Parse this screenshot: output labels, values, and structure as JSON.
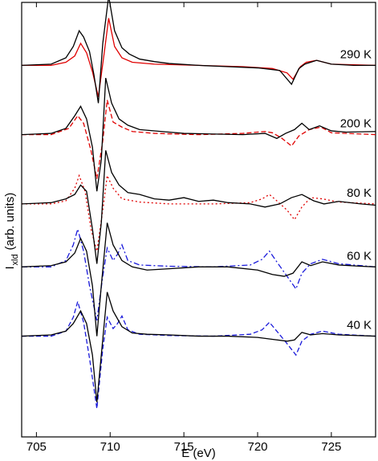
{
  "chart_data": {
    "type": "line",
    "xlabel": "E (eV)",
    "ylabel": {
      "main": "I",
      "subscript": "xld",
      "rest": " (arb. units)"
    },
    "xlim": [
      704,
      728
    ],
    "xticks": [
      705,
      710,
      715,
      720,
      725
    ],
    "xtick_labels": [
      "705",
      "710",
      "715",
      "720",
      "725"
    ],
    "yticks_visible": false,
    "grid": false,
    "colors": {
      "experiment": "#000000",
      "red": "#e00000",
      "blue": "#1a1adb"
    },
    "panels": [
      {
        "label": "290 K",
        "offset": 4.0,
        "experiment": [
          [
            704.0,
            0.0
          ],
          [
            706.0,
            0.02
          ],
          [
            707.0,
            0.12
          ],
          [
            707.5,
            0.3
          ],
          [
            707.9,
            0.55
          ],
          [
            708.2,
            0.45
          ],
          [
            708.6,
            0.22
          ],
          [
            708.9,
            -0.15
          ],
          [
            709.2,
            -0.6
          ],
          [
            709.5,
            0.35
          ],
          [
            709.9,
            1.1
          ],
          [
            710.3,
            0.55
          ],
          [
            710.8,
            0.28
          ],
          [
            711.3,
            0.18
          ],
          [
            712.0,
            0.1
          ],
          [
            713.0,
            0.06
          ],
          [
            714.0,
            0.03
          ],
          [
            716.0,
            0.0
          ],
          [
            718.0,
            -0.02
          ],
          [
            720.0,
            -0.04
          ],
          [
            721.5,
            -0.08
          ],
          [
            722.3,
            -0.3
          ],
          [
            722.8,
            -0.05
          ],
          [
            723.2,
            0.02
          ],
          [
            724.0,
            0.08
          ],
          [
            725.0,
            0.02
          ],
          [
            726.5,
            0.0
          ],
          [
            728.0,
            0.0
          ]
        ],
        "model": {
          "style": "solid",
          "color": "red",
          "points": [
            [
              704.0,
              0.0
            ],
            [
              706.0,
              0.0
            ],
            [
              707.0,
              0.05
            ],
            [
              707.6,
              0.15
            ],
            [
              708.0,
              0.35
            ],
            [
              708.4,
              0.2
            ],
            [
              708.8,
              -0.1
            ],
            [
              709.2,
              -0.5
            ],
            [
              709.6,
              0.2
            ],
            [
              709.9,
              0.75
            ],
            [
              710.3,
              0.3
            ],
            [
              710.8,
              0.12
            ],
            [
              711.5,
              0.05
            ],
            [
              713.0,
              0.02
            ],
            [
              716.0,
              0.0
            ],
            [
              719.0,
              -0.02
            ],
            [
              721.0,
              -0.05
            ],
            [
              722.0,
              -0.12
            ],
            [
              722.4,
              -0.22
            ],
            [
              722.9,
              -0.02
            ],
            [
              723.3,
              0.05
            ],
            [
              724.0,
              0.08
            ],
            [
              725.0,
              0.02
            ],
            [
              728.0,
              0.0
            ]
          ]
        }
      },
      {
        "label": "200 K",
        "offset": 2.9,
        "experiment": [
          [
            704.0,
            0.0
          ],
          [
            705.0,
            0.01
          ],
          [
            706.0,
            0.02
          ],
          [
            707.0,
            0.1
          ],
          [
            707.6,
            0.3
          ],
          [
            708.0,
            0.45
          ],
          [
            708.4,
            0.25
          ],
          [
            708.8,
            -0.2
          ],
          [
            709.1,
            -0.9
          ],
          [
            709.4,
            -0.4
          ],
          [
            709.7,
            0.9
          ],
          [
            710.1,
            0.5
          ],
          [
            710.6,
            0.25
          ],
          [
            711.2,
            0.15
          ],
          [
            712.0,
            0.08
          ],
          [
            713.5,
            0.05
          ],
          [
            715.0,
            0.02
          ],
          [
            717.0,
            0.01
          ],
          [
            719.0,
            0.0
          ],
          [
            720.5,
            0.02
          ],
          [
            721.3,
            -0.06
          ],
          [
            721.9,
            0.02
          ],
          [
            722.5,
            0.08
          ],
          [
            723.0,
            0.18
          ],
          [
            723.5,
            0.08
          ],
          [
            724.2,
            0.14
          ],
          [
            725.0,
            0.06
          ],
          [
            726.0,
            0.04
          ],
          [
            728.0,
            0.05
          ]
        ],
        "model": {
          "style": "dashed",
          "color": "red",
          "points": [
            [
              704.0,
              0.0
            ],
            [
              706.0,
              0.0
            ],
            [
              707.2,
              0.1
            ],
            [
              707.8,
              0.3
            ],
            [
              708.2,
              0.18
            ],
            [
              708.7,
              -0.25
            ],
            [
              709.1,
              -0.7
            ],
            [
              709.5,
              -0.1
            ],
            [
              709.8,
              0.55
            ],
            [
              710.2,
              0.2
            ],
            [
              710.8,
              0.12
            ],
            [
              711.5,
              0.05
            ],
            [
              713.0,
              0.02
            ],
            [
              716.0,
              0.0
            ],
            [
              719.0,
              0.02
            ],
            [
              720.5,
              0.05
            ],
            [
              721.0,
              0.03
            ],
            [
              721.6,
              -0.05
            ],
            [
              722.3,
              -0.18
            ],
            [
              722.8,
              -0.02
            ],
            [
              723.5,
              0.08
            ],
            [
              724.3,
              0.12
            ],
            [
              725.0,
              0.03
            ],
            [
              728.0,
              0.0
            ]
          ]
        }
      },
      {
        "label": "80 K",
        "offset": 1.8,
        "experiment": [
          [
            704.0,
            0.0
          ],
          [
            705.0,
            0.01
          ],
          [
            706.0,
            0.02
          ],
          [
            707.0,
            0.08
          ],
          [
            707.6,
            0.15
          ],
          [
            708.0,
            0.3
          ],
          [
            708.4,
            0.2
          ],
          [
            708.8,
            -0.4
          ],
          [
            709.1,
            -0.95
          ],
          [
            709.4,
            -0.3
          ],
          [
            709.7,
            0.85
          ],
          [
            710.1,
            0.5
          ],
          [
            710.6,
            0.3
          ],
          [
            711.2,
            0.18
          ],
          [
            712.0,
            0.15
          ],
          [
            713.0,
            0.08
          ],
          [
            714.0,
            0.06
          ],
          [
            715.0,
            0.1
          ],
          [
            716.0,
            0.04
          ],
          [
            717.0,
            0.06
          ],
          [
            718.0,
            0.02
          ],
          [
            719.5,
            0.0
          ],
          [
            720.5,
            -0.05
          ],
          [
            721.5,
            0.0
          ],
          [
            722.3,
            0.1
          ],
          [
            723.0,
            0.15
          ],
          [
            723.8,
            0.05
          ],
          [
            724.5,
            0.0
          ],
          [
            725.5,
            0.04
          ],
          [
            727.0,
            0.0
          ],
          [
            728.0,
            -0.02
          ]
        ],
        "model": {
          "style": "dotted",
          "color": "red",
          "points": [
            [
              704.0,
              0.0
            ],
            [
              706.0,
              0.0
            ],
            [
              707.0,
              0.05
            ],
            [
              707.6,
              0.25
            ],
            [
              707.9,
              0.45
            ],
            [
              708.3,
              0.2
            ],
            [
              708.7,
              -0.4
            ],
            [
              709.1,
              -0.75
            ],
            [
              709.5,
              -0.1
            ],
            [
              709.8,
              0.45
            ],
            [
              710.2,
              0.25
            ],
            [
              710.8,
              0.08
            ],
            [
              712.0,
              0.03
            ],
            [
              714.0,
              0.0
            ],
            [
              717.0,
              0.0
            ],
            [
              719.5,
              0.02
            ],
            [
              720.3,
              0.08
            ],
            [
              720.8,
              0.15
            ],
            [
              721.3,
              0.05
            ],
            [
              722.0,
              -0.1
            ],
            [
              722.5,
              -0.25
            ],
            [
              723.0,
              -0.05
            ],
            [
              723.6,
              0.1
            ],
            [
              724.4,
              0.08
            ],
            [
              725.5,
              0.03
            ],
            [
              728.0,
              0.0
            ]
          ]
        }
      },
      {
        "label": "60 K",
        "offset": 0.8,
        "experiment": [
          [
            704.0,
            0.0
          ],
          [
            705.0,
            0.01
          ],
          [
            706.0,
            0.02
          ],
          [
            707.0,
            0.08
          ],
          [
            707.6,
            0.22
          ],
          [
            708.0,
            0.45
          ],
          [
            708.4,
            0.25
          ],
          [
            708.8,
            -0.3
          ],
          [
            709.1,
            -1.1
          ],
          [
            709.4,
            -0.3
          ],
          [
            709.8,
            0.7
          ],
          [
            710.2,
            0.35
          ],
          [
            710.8,
            0.1
          ],
          [
            711.5,
            0.0
          ],
          [
            712.5,
            -0.05
          ],
          [
            714.0,
            -0.03
          ],
          [
            716.0,
            0.0
          ],
          [
            718.0,
            0.0
          ],
          [
            720.0,
            -0.05
          ],
          [
            721.0,
            -0.12
          ],
          [
            721.8,
            -0.15
          ],
          [
            722.4,
            -0.1
          ],
          [
            723.0,
            0.08
          ],
          [
            723.6,
            0.02
          ],
          [
            724.4,
            0.08
          ],
          [
            725.5,
            0.03
          ],
          [
            727.0,
            0.01
          ],
          [
            728.0,
            0.0
          ]
        ],
        "model": {
          "style": "dashdot",
          "color": "blue",
          "points": [
            [
              704.0,
              0.0
            ],
            [
              706.0,
              0.0
            ],
            [
              707.0,
              0.1
            ],
            [
              707.5,
              0.35
            ],
            [
              707.8,
              0.6
            ],
            [
              708.2,
              0.25
            ],
            [
              708.6,
              -0.3
            ],
            [
              709.1,
              -0.85
            ],
            [
              709.5,
              -0.15
            ],
            [
              709.8,
              0.3
            ],
            [
              710.2,
              0.1
            ],
            [
              710.5,
              0.2
            ],
            [
              710.8,
              0.35
            ],
            [
              711.2,
              0.1
            ],
            [
              712.0,
              0.03
            ],
            [
              714.0,
              0.01
            ],
            [
              717.0,
              0.0
            ],
            [
              719.5,
              0.03
            ],
            [
              720.3,
              0.12
            ],
            [
              720.8,
              0.25
            ],
            [
              721.3,
              0.08
            ],
            [
              722.0,
              -0.15
            ],
            [
              722.6,
              -0.35
            ],
            [
              723.0,
              -0.1
            ],
            [
              723.6,
              0.05
            ],
            [
              724.4,
              0.12
            ],
            [
              725.5,
              0.05
            ],
            [
              728.0,
              0.0
            ]
          ]
        }
      },
      {
        "label": "40 K",
        "offset": -0.3,
        "experiment": [
          [
            704.0,
            0.0
          ],
          [
            705.0,
            0.01
          ],
          [
            706.0,
            0.02
          ],
          [
            707.0,
            0.08
          ],
          [
            707.5,
            0.2
          ],
          [
            708.0,
            0.4
          ],
          [
            708.4,
            0.2
          ],
          [
            708.8,
            -0.3
          ],
          [
            709.1,
            -1.05
          ],
          [
            709.4,
            -0.3
          ],
          [
            709.8,
            0.7
          ],
          [
            710.2,
            0.4
          ],
          [
            710.8,
            0.15
          ],
          [
            711.5,
            0.05
          ],
          [
            712.5,
            0.03
          ],
          [
            714.0,
            0.02
          ],
          [
            716.0,
            0.0
          ],
          [
            718.0,
            0.0
          ],
          [
            720.0,
            -0.02
          ],
          [
            721.0,
            -0.05
          ],
          [
            722.0,
            -0.08
          ],
          [
            722.5,
            -0.06
          ],
          [
            723.0,
            0.06
          ],
          [
            723.6,
            0.02
          ],
          [
            724.4,
            0.04
          ],
          [
            725.5,
            0.02
          ],
          [
            728.0,
            0.0
          ]
        ],
        "model": {
          "style": "dashed",
          "color": "blue",
          "points": [
            [
              704.0,
              0.0
            ],
            [
              706.0,
              0.0
            ],
            [
              707.0,
              0.08
            ],
            [
              707.5,
              0.3
            ],
            [
              707.8,
              0.55
            ],
            [
              708.2,
              0.22
            ],
            [
              708.6,
              -0.35
            ],
            [
              709.1,
              -1.15
            ],
            [
              709.5,
              -0.2
            ],
            [
              709.8,
              0.3
            ],
            [
              710.2,
              0.12
            ],
            [
              710.5,
              0.2
            ],
            [
              710.8,
              0.32
            ],
            [
              711.2,
              0.1
            ],
            [
              712.0,
              0.03
            ],
            [
              714.0,
              0.01
            ],
            [
              717.0,
              0.0
            ],
            [
              719.5,
              0.03
            ],
            [
              720.3,
              0.1
            ],
            [
              720.8,
              0.22
            ],
            [
              721.3,
              0.08
            ],
            [
              722.0,
              -0.12
            ],
            [
              722.6,
              -0.3
            ],
            [
              723.0,
              -0.08
            ],
            [
              723.6,
              0.03
            ],
            [
              724.4,
              0.08
            ],
            [
              725.5,
              0.03
            ],
            [
              728.0,
              0.0
            ]
          ]
        }
      }
    ]
  }
}
